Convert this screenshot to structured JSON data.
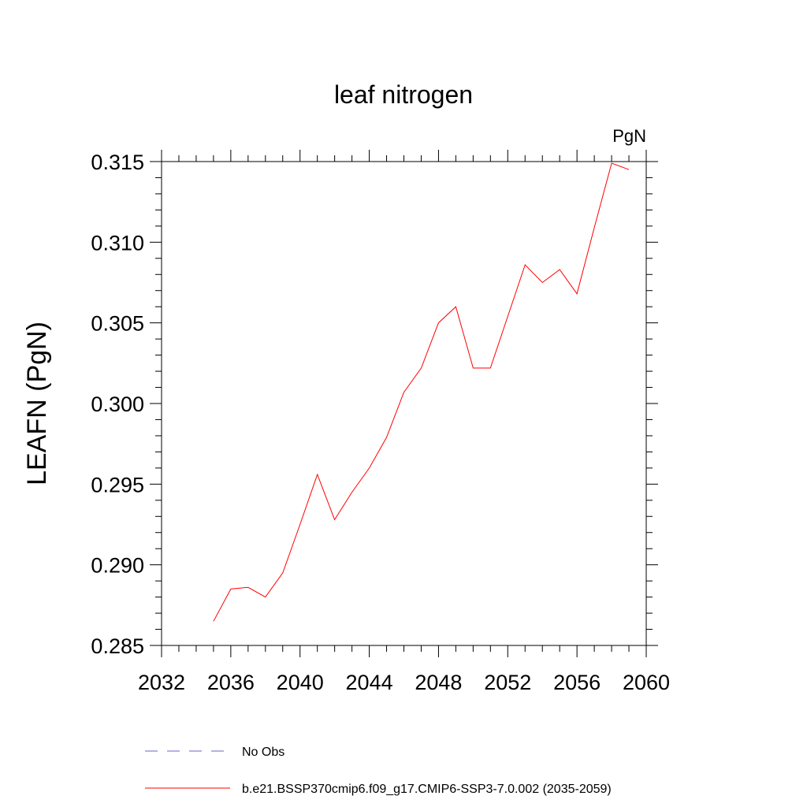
{
  "chart_data": {
    "type": "line",
    "title": "leaf nitrogen",
    "units_label": "PgN",
    "ylabel": "LEAFN  (PgN)",
    "xlabel": "",
    "xlim": [
      2032,
      2060
    ],
    "ylim": [
      0.285,
      0.315
    ],
    "x_ticks": [
      2032,
      2036,
      2040,
      2044,
      2048,
      2052,
      2056,
      2060
    ],
    "x_tick_labels": [
      "2032",
      "2036",
      "2040",
      "2044",
      "2048",
      "2052",
      "2056",
      "2060"
    ],
    "x_minor_step": 1,
    "y_ticks": [
      0.285,
      0.29,
      0.295,
      0.3,
      0.305,
      0.31,
      0.315
    ],
    "y_tick_labels": [
      "0.285",
      "0.290",
      "0.295",
      "0.300",
      "0.305",
      "0.310",
      "0.315"
    ],
    "y_minor_step": 0.001,
    "grid": false,
    "series": [
      {
        "name": "b.e21.BSSP370cmip6.f09_g17.CMIP6-SSP3-7.0.002 (2035-2059)",
        "color": "#ff0000",
        "x": [
          2035,
          2036,
          2037,
          2038,
          2039,
          2040,
          2041,
          2042,
          2043,
          2044,
          2045,
          2046,
          2047,
          2048,
          2049,
          2050,
          2051,
          2052,
          2053,
          2054,
          2055,
          2056,
          2057,
          2058,
          2059
        ],
        "values": [
          0.2865,
          0.2885,
          0.2886,
          0.288,
          0.2895,
          0.2925,
          0.2956,
          0.2928,
          0.2945,
          0.296,
          0.2979,
          0.3007,
          0.3022,
          0.305,
          0.306,
          0.3022,
          0.3022,
          0.3054,
          0.3086,
          0.3075,
          0.3083,
          0.3068,
          0.3109,
          0.3149,
          0.3145
        ]
      }
    ],
    "legend": [
      {
        "label": "No Obs",
        "color": "#6666cc",
        "style": "dashed"
      },
      {
        "label": "b.e21.BSSP370cmip6.f09_g17.CMIP6-SSP3-7.0.002 (2035-2059)",
        "color": "#ff0000",
        "style": "solid"
      }
    ],
    "legend_position": "bottom"
  }
}
